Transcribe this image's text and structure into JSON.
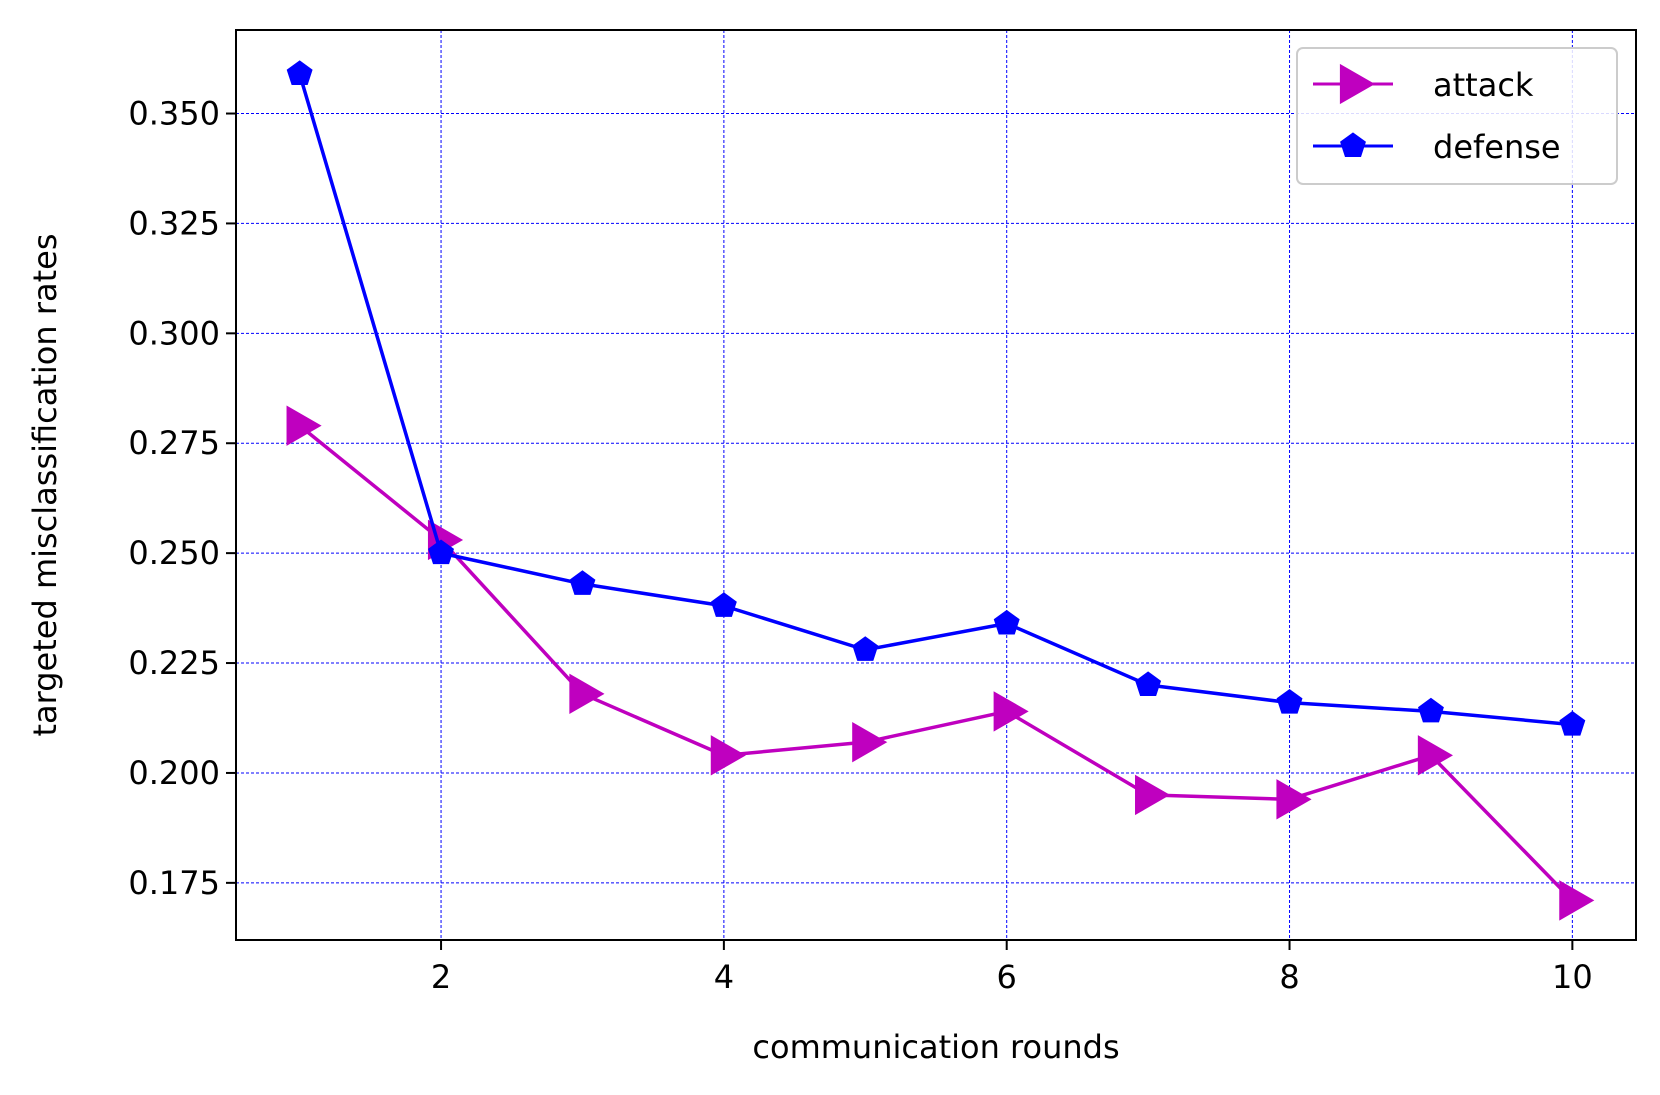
{
  "chart_data": {
    "type": "line",
    "title": "",
    "xlabel": "communication rounds",
    "ylabel": "targeted misclassification rates",
    "x": [
      1,
      2,
      3,
      4,
      5,
      6,
      7,
      8,
      9,
      10
    ],
    "xlim": [
      0.55,
      10.45
    ],
    "ylim": [
      0.162,
      0.369
    ],
    "xticks": [
      2,
      4,
      6,
      8,
      10
    ],
    "xtick_labels": [
      "2",
      "4",
      "6",
      "8",
      "10"
    ],
    "yticks": [
      0.175,
      0.2,
      0.225,
      0.25,
      0.275,
      0.3,
      0.325,
      0.35
    ],
    "ytick_labels": [
      "0.175",
      "0.200",
      "0.225",
      "0.250",
      "0.275",
      "0.300",
      "0.325",
      "0.350"
    ],
    "grid": true,
    "grid_color": "#0000ff",
    "legend_position": "top-right",
    "series": [
      {
        "name": "attack",
        "color": "#bf00bf",
        "marker": "triangle-right",
        "values": [
          0.279,
          0.253,
          0.218,
          0.204,
          0.207,
          0.214,
          0.195,
          0.194,
          0.204,
          0.171
        ]
      },
      {
        "name": "defense",
        "color": "#0000ff",
        "marker": "pentagon",
        "values": [
          0.359,
          0.25,
          0.243,
          0.238,
          0.228,
          0.234,
          0.22,
          0.216,
          0.214,
          0.211
        ]
      }
    ]
  }
}
